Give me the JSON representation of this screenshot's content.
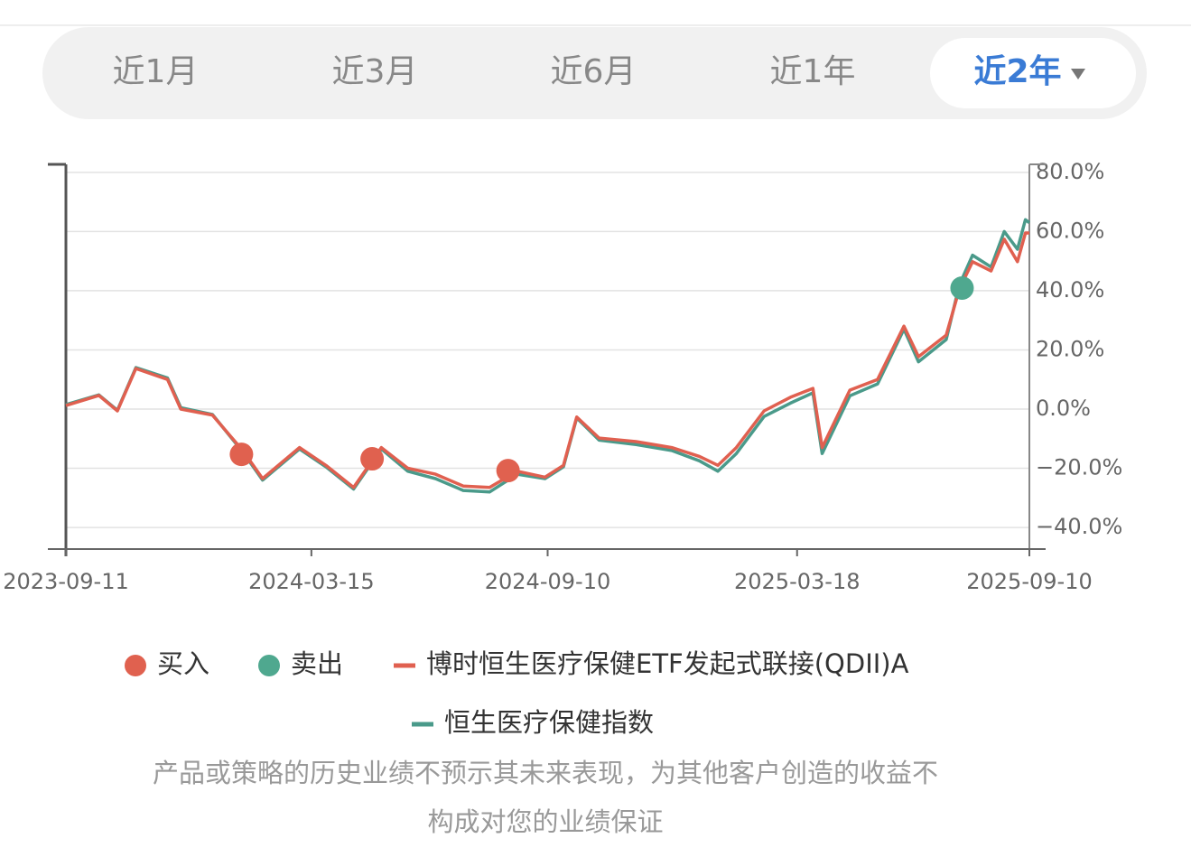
{
  "tabs": [
    {
      "label": "近1月"
    },
    {
      "label": "近3月"
    },
    {
      "label": "近6月"
    },
    {
      "label": "近1年"
    },
    {
      "label": "近2年",
      "active": true
    }
  ],
  "chart_data": {
    "type": "line",
    "xlim": [
      "2023-09-11",
      "2025-09-10"
    ],
    "xticks": [
      "2023-09-11",
      "2024-03-15",
      "2024-09-10",
      "2025-03-18",
      "2025-09-10"
    ],
    "ylim": [
      -47.3,
      82.7
    ],
    "yticks": [
      {
        "value": 80,
        "label": "80.0%"
      },
      {
        "value": 60,
        "label": "60.0%"
      },
      {
        "value": 40,
        "label": "40.0%"
      },
      {
        "value": 20,
        "label": "20.0%"
      },
      {
        "value": 0,
        "label": "0.0%"
      },
      {
        "value": -20,
        "label": "−20.0%"
      },
      {
        "value": -40,
        "label": "−40.0%"
      }
    ],
    "grid": true,
    "series": [
      {
        "name": "买入",
        "style": "marker",
        "color": "#e0614f",
        "x": [
          "2024-01-22",
          "2024-04-30",
          "2024-08-11"
        ],
        "values": [
          -15.3,
          -16.8,
          -20.8
        ]
      },
      {
        "name": "卖出",
        "style": "marker",
        "color": "#4fa88f",
        "x": [
          "2025-07-21"
        ],
        "values": [
          40.9
        ]
      },
      {
        "name": "博时恒生医疗保健ETF发起式联接(QDII)A",
        "style": "line",
        "color": "#e06050",
        "x": [
          "2023-09-11",
          "2023-10-06",
          "2023-10-20",
          "2023-11-03",
          "2023-11-27",
          "2023-12-07",
          "2023-12-31",
          "2024-01-23",
          "2024-02-07",
          "2024-03-06",
          "2024-03-26",
          "2024-04-16",
          "2024-05-07",
          "2024-05-27",
          "2024-06-17",
          "2024-07-08",
          "2024-07-28",
          "2024-08-18",
          "2024-09-08",
          "2024-09-22",
          "2024-10-02",
          "2024-10-19",
          "2024-11-16",
          "2024-12-13",
          "2025-01-03",
          "2025-01-17",
          "2025-01-31",
          "2025-02-21",
          "2025-03-13",
          "2025-03-30",
          "2025-04-06",
          "2025-04-27",
          "2025-05-18",
          "2025-06-07",
          "2025-06-18",
          "2025-07-09",
          "2025-07-19",
          "2025-07-29",
          "2025-08-12",
          "2025-08-22",
          "2025-09-01",
          "2025-09-07",
          "2025-09-10"
        ],
        "values": [
          1.2,
          4.6,
          -0.6,
          13.7,
          10,
          0,
          -2,
          -14,
          -23.5,
          -13,
          -19,
          -26.5,
          -13,
          -20,
          -22,
          -26,
          -26.5,
          -21,
          -23,
          -19,
          -2.7,
          -9.8,
          -11,
          -13,
          -16,
          -19,
          -13,
          -0.6,
          4,
          7,
          -13,
          6.4,
          10,
          28,
          17.7,
          25,
          40.6,
          49.8,
          46.7,
          57.4,
          49.8,
          59.5,
          59.5
        ]
      },
      {
        "name": "恒生医疗保健指数",
        "style": "line",
        "color": "#4a9a8a",
        "x": [
          "2023-09-11",
          "2023-10-06",
          "2023-10-20",
          "2023-11-03",
          "2023-11-27",
          "2023-12-07",
          "2023-12-31",
          "2024-01-23",
          "2024-02-07",
          "2024-03-06",
          "2024-03-26",
          "2024-04-16",
          "2024-05-07",
          "2024-05-27",
          "2024-06-17",
          "2024-07-08",
          "2024-07-28",
          "2024-08-18",
          "2024-09-08",
          "2024-09-22",
          "2024-10-02",
          "2024-10-19",
          "2024-11-16",
          "2024-12-13",
          "2025-01-03",
          "2025-01-17",
          "2025-01-31",
          "2025-02-21",
          "2025-03-13",
          "2025-03-30",
          "2025-04-06",
          "2025-04-27",
          "2025-05-18",
          "2025-06-07",
          "2025-06-18",
          "2025-07-09",
          "2025-07-19",
          "2025-07-29",
          "2025-08-12",
          "2025-08-22",
          "2025-09-01",
          "2025-09-07",
          "2025-09-10"
        ],
        "values": [
          1.5,
          4.8,
          -0.4,
          14,
          10.5,
          0.5,
          -1.8,
          -14.5,
          -24,
          -13.5,
          -19.5,
          -27,
          -13.5,
          -21,
          -23.5,
          -27.5,
          -28,
          -22,
          -23.5,
          -19.5,
          -3,
          -10.5,
          -12,
          -14,
          -17.5,
          -21,
          -15,
          -2.5,
          2,
          5.5,
          -15,
          4.5,
          8.5,
          27,
          16,
          23.5,
          42,
          52,
          48,
          60,
          54,
          64,
          63
        ]
      }
    ]
  },
  "disclaimer": [
    "产品或策略的历史业绩不预示其未来表现，为其他客户创造的收益不",
    "构成对您的业绩保证"
  ]
}
